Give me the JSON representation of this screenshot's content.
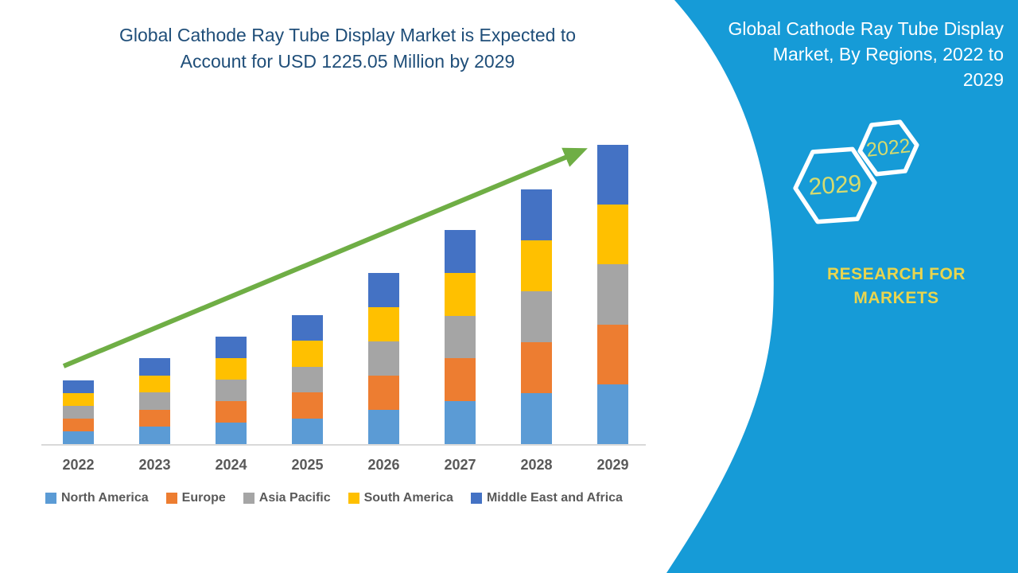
{
  "page": {
    "background": "#FFFFFF"
  },
  "main_title": {
    "line1": "Global Cathode Ray Tube Display Market is Expected to",
    "line2": "Account for USD 1225.05 Million by 2029",
    "color": "#1F4E79"
  },
  "chart_data": {
    "type": "bar",
    "stacked": true,
    "title": "Global Cathode Ray Tube Display Market is Expected to Account for USD 1225.05 Million by 2029",
    "unit": "USD Million",
    "categories": [
      "2022",
      "2023",
      "2024",
      "2025",
      "2026",
      "2027",
      "2028",
      "2029"
    ],
    "series": [
      {
        "name": "North America",
        "color": "#5B9BD5",
        "values": [
          52.1,
          70.4,
          88.0,
          105.6,
          140.1,
          175.3,
          208.6,
          245.01
        ]
      },
      {
        "name": "Europe",
        "color": "#ED7D31",
        "values": [
          52.1,
          70.4,
          88.0,
          105.6,
          140.1,
          175.3,
          208.6,
          245.01
        ]
      },
      {
        "name": "Asia Pacific",
        "color": "#A5A5A5",
        "values": [
          52.1,
          70.4,
          88.0,
          105.6,
          140.1,
          175.3,
          208.6,
          245.01
        ]
      },
      {
        "name": "South America",
        "color": "#FFC000",
        "values": [
          52.1,
          70.4,
          88.0,
          105.6,
          140.1,
          175.3,
          208.6,
          245.01
        ]
      },
      {
        "name": "Middle East and Africa",
        "color": "#4472C4",
        "values": [
          52.1,
          70.4,
          88.0,
          105.6,
          140.1,
          175.3,
          208.6,
          245.01
        ]
      }
    ],
    "totals": [
      260.5,
      352.0,
      440.0,
      528.0,
      700.5,
      876.5,
      1043.0,
      1225.05
    ],
    "xlabel": "",
    "ylabel": "",
    "ylim": [
      0,
      1300
    ],
    "gridlines": false,
    "legend_position": "bottom",
    "annotations": [
      "upward-growth-trend-arrow"
    ],
    "annotation_color": "#6FAE45",
    "axis_label_color": "#595959",
    "axis_line_color": "#D9D9D9"
  },
  "sidebar": {
    "title_lines": [
      "Global Cathode Ray Tube Display",
      "Market, By Regions, 2022 to",
      "2029"
    ],
    "hexagons": [
      {
        "label": "2022"
      },
      {
        "label": "2029"
      }
    ],
    "brand": {
      "line1": "RESEARCH FOR",
      "line2": "MARKETS"
    },
    "colors": {
      "background": "#169BD7",
      "hexagon_outline": "#FFFFFF",
      "hexagon_text": "#D6DB6E",
      "brand_text": "#E9D54E",
      "title_text": "#FFFFFF"
    }
  }
}
